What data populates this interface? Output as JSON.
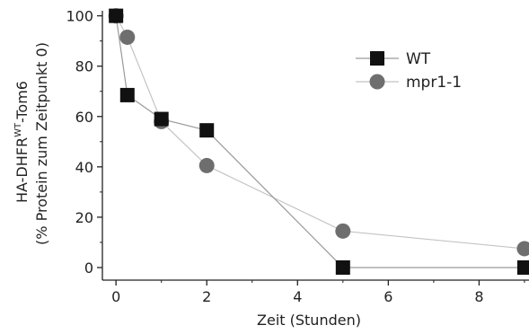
{
  "chart_data": {
    "type": "scatter",
    "xlabel": "Zeit (Stunden)",
    "ylabel_line1_main": "HA-DHFR",
    "ylabel_line1_sup": "WT",
    "ylabel_line1_tail": "-Tom6",
    "ylabel_line2": "(% Protein  zum Zeitpunkt 0)",
    "xlim": [
      -0.3,
      9.1
    ],
    "ylim": [
      -5,
      102
    ],
    "xticks": [
      0,
      2,
      4,
      6,
      8
    ],
    "yticks": [
      0,
      20,
      40,
      60,
      80,
      100
    ],
    "legend_position": "top-right",
    "series": [
      {
        "name": "WT",
        "marker": "square",
        "color": "#111111",
        "line_color": "#9a9a9a",
        "x": [
          0,
          0.25,
          1,
          2,
          5,
          9
        ],
        "y": [
          100,
          68.5,
          59,
          54.5,
          0,
          0
        ]
      },
      {
        "name": "mpr1-1",
        "marker": "circle",
        "color": "#6e6e6e",
        "line_color": "#c4c4c4",
        "x": [
          0,
          0.25,
          1,
          2,
          5,
          9
        ],
        "y": [
          100,
          91.5,
          58,
          40.5,
          14.5,
          7.5
        ]
      }
    ]
  }
}
